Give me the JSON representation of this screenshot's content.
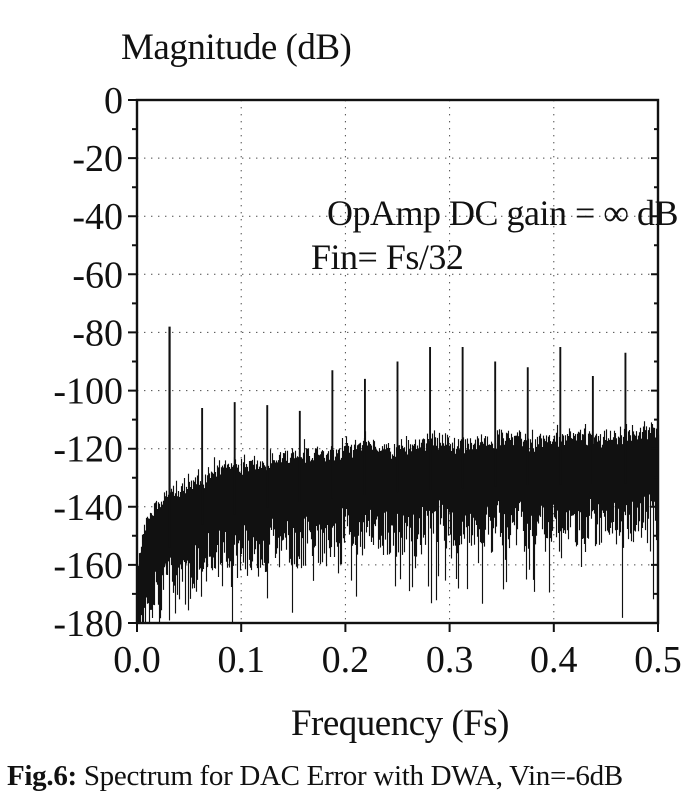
{
  "figure": {
    "caption": {
      "label": "Fig.6:",
      "text": " Spectrum for DAC Error with DWA, Vin=-6dB"
    }
  },
  "colors": {
    "ink": "#111111",
    "grid": "#4a4a4a",
    "background": "#ffffff"
  },
  "chart_data": {
    "type": "line",
    "title": "Magnitude (dB)",
    "xlabel": "Frequency (Fs)",
    "ylabel": "Magnitude (dB)",
    "xlim": [
      0,
      0.5
    ],
    "ylim": [
      -180,
      0
    ],
    "grid": "dotted lines at interior major ticks",
    "legend": "none",
    "annotations": [
      "OpAmp DC gain = ∞ dB",
      "Fin= Fs/32"
    ],
    "x_ticks": [
      {
        "value": 0.0,
        "label": "0.0"
      },
      {
        "value": 0.1,
        "label": "0.1"
      },
      {
        "value": 0.2,
        "label": "0.2"
      },
      {
        "value": 0.3,
        "label": "0.3"
      },
      {
        "value": 0.4,
        "label": "0.4"
      },
      {
        "value": 0.5,
        "label": "0.5"
      }
    ],
    "y_ticks": [
      {
        "value": 0,
        "label": "0"
      },
      {
        "value": -20,
        "label": "-20"
      },
      {
        "value": -40,
        "label": "-40"
      },
      {
        "value": -60,
        "label": "-60"
      },
      {
        "value": -80,
        "label": "-80"
      },
      {
        "value": -100,
        "label": "-100"
      },
      {
        "value": -120,
        "label": "-120"
      },
      {
        "value": -140,
        "label": "-140"
      },
      {
        "value": -160,
        "label": "-160"
      },
      {
        "value": -180,
        "label": "-180"
      }
    ],
    "signal": {
      "frequency_fs": 0.03125,
      "magnitude_db": -78
    },
    "harmonics": [
      {
        "frequency_fs": 0.0625,
        "magnitude_db": -106
      },
      {
        "frequency_fs": 0.09375,
        "magnitude_db": -104
      },
      {
        "frequency_fs": 0.125,
        "magnitude_db": -105
      },
      {
        "frequency_fs": 0.15625,
        "magnitude_db": -107
      },
      {
        "frequency_fs": 0.1875,
        "magnitude_db": -93
      },
      {
        "frequency_fs": 0.21875,
        "magnitude_db": -96
      },
      {
        "frequency_fs": 0.25,
        "magnitude_db": -90
      },
      {
        "frequency_fs": 0.28125,
        "magnitude_db": -85
      },
      {
        "frequency_fs": 0.3125,
        "magnitude_db": -85
      },
      {
        "frequency_fs": 0.34375,
        "magnitude_db": -90
      },
      {
        "frequency_fs": 0.375,
        "magnitude_db": -92
      },
      {
        "frequency_fs": 0.40625,
        "magnitude_db": -85
      },
      {
        "frequency_fs": 0.4375,
        "magnitude_db": -95
      },
      {
        "frequency_fs": 0.46875,
        "magnitude_db": -87
      }
    ],
    "noise_floor": {
      "description": "first-order noise-shaped floor rising from -180 dB near DC to about -116 dB at 0.5 Fs",
      "base_db": -122,
      "model": "base_db + 20*log10(2*sin(pi*f))",
      "band_depth_db": 30,
      "envelope_samples": [
        {
          "f": 0.01,
          "db": -146
        },
        {
          "f": 0.03,
          "db": -136
        },
        {
          "f": 0.05,
          "db": -132
        },
        {
          "f": 0.1,
          "db": -126
        },
        {
          "f": 0.2,
          "db": -120
        },
        {
          "f": 0.3,
          "db": -118
        },
        {
          "f": 0.4,
          "db": -117
        },
        {
          "f": 0.5,
          "db": -116
        }
      ]
    }
  }
}
